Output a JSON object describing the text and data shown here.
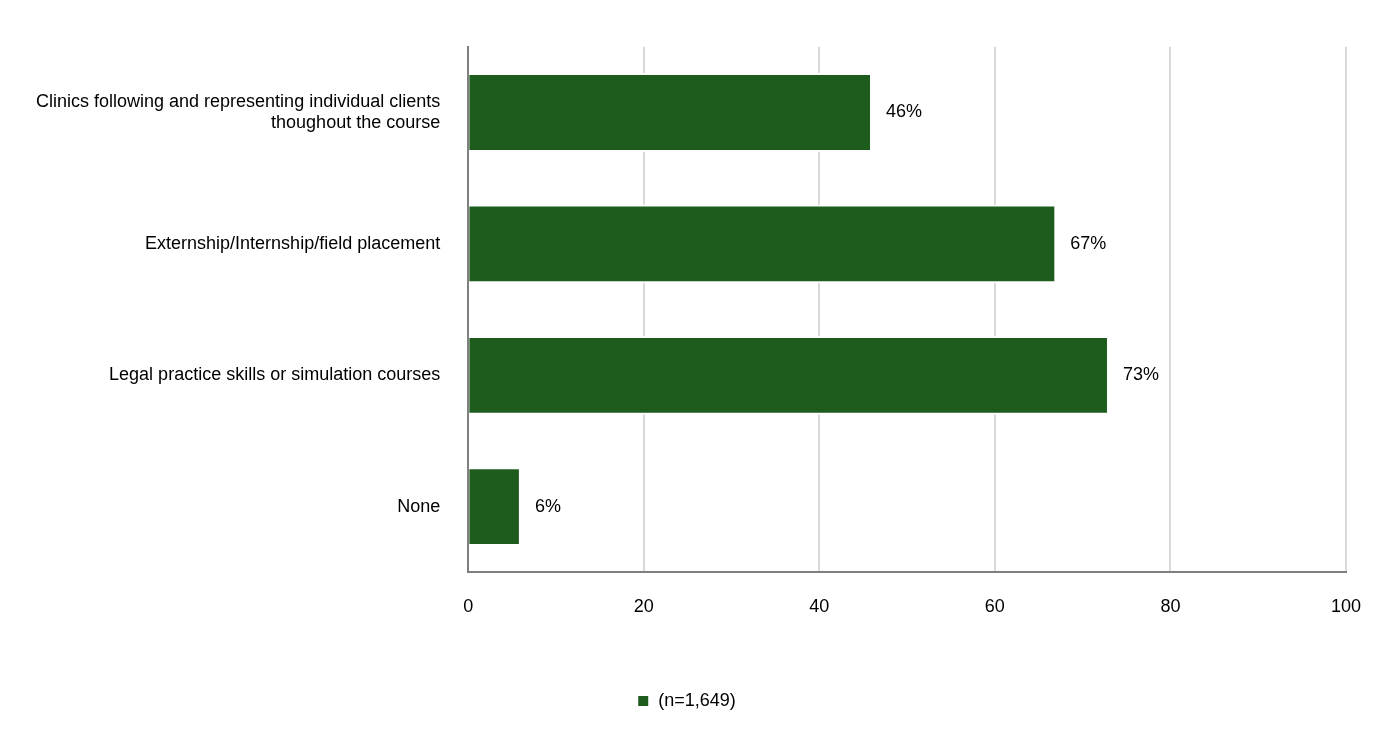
{
  "chart_data": {
    "type": "bar",
    "orientation": "horizontal",
    "categories": [
      "Clinics following and representing individual clients thoughout the course",
      "Externship/Internship/field placement",
      "Legal practice skills or simulation courses",
      "None"
    ],
    "series": [
      {
        "name": "(n=1,649)",
        "color": "#1e5c1e",
        "values": [
          46,
          67,
          73,
          6
        ],
        "value_labels": [
          "46%",
          "67%",
          "73%",
          "6%"
        ]
      }
    ],
    "xlim": [
      0,
      100
    ],
    "xticks": [
      0,
      20,
      40,
      60,
      80,
      100
    ],
    "grid": "x",
    "legend": "bottom"
  }
}
